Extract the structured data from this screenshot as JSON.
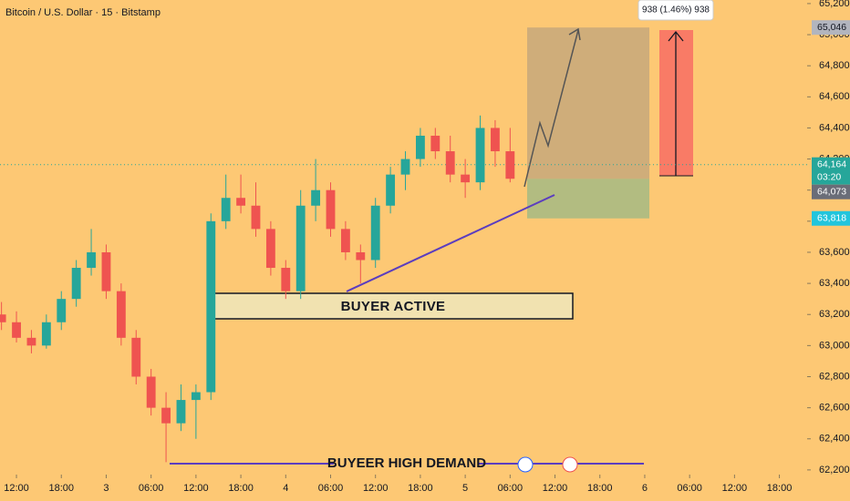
{
  "chart_data": {
    "type": "candlestick",
    "title": "Bitcoin / U.S. Dollar · 15 · Bitstamp",
    "x": [
      -2,
      0,
      2,
      4,
      6,
      8,
      10,
      12,
      14,
      16,
      18,
      20,
      22,
      24,
      26,
      28,
      30,
      32,
      34,
      36,
      38,
      40,
      42,
      44,
      46,
      48,
      50,
      52,
      54,
      56,
      58,
      60,
      62,
      64,
      66
    ],
    "open": [
      63200,
      63150,
      63050,
      63000,
      63150,
      63300,
      63500,
      63600,
      63350,
      63050,
      62800,
      62600,
      62500,
      62650,
      62700,
      63800,
      63950,
      63900,
      63750,
      63500,
      63350,
      63900,
      64000,
      63750,
      63600,
      63550,
      63900,
      64100,
      64200,
      64350,
      64250,
      64100,
      64050,
      64400,
      64250
    ],
    "high": [
      63280,
      63220,
      63100,
      63200,
      63350,
      63550,
      63750,
      63650,
      63400,
      63100,
      62850,
      62700,
      62750,
      62750,
      63850,
      64100,
      64100,
      64050,
      63800,
      63550,
      64000,
      64200,
      64050,
      63800,
      63650,
      63950,
      64150,
      64250,
      64400,
      64400,
      64350,
      64200,
      64480,
      64450,
      64400
    ],
    "low": [
      63100,
      63020,
      62950,
      62980,
      63100,
      63250,
      63450,
      63300,
      63000,
      62750,
      62550,
      62250,
      62450,
      62400,
      62650,
      63750,
      63850,
      63700,
      63450,
      63300,
      63300,
      63800,
      63700,
      63550,
      63400,
      63500,
      63850,
      64000,
      64150,
      64200,
      64050,
      63950,
      64000,
      64150,
      64050
    ],
    "close": [
      63150,
      63050,
      63000,
      63150,
      63300,
      63500,
      63600,
      63350,
      63050,
      62800,
      62600,
      62500,
      62650,
      62700,
      63800,
      63950,
      63900,
      63750,
      63500,
      63350,
      63900,
      64000,
      63750,
      63600,
      63550,
      63900,
      64100,
      64200,
      64350,
      64250,
      64100,
      64050,
      64400,
      64250,
      64073
    ],
    "up_color": "#26a69a",
    "down_color": "#ef5350",
    "xlim": [
      -2.2,
      105.1
    ],
    "xticks": [
      {
        "value": 0,
        "label": "12:00"
      },
      {
        "value": 6,
        "label": "18:00"
      },
      {
        "value": 12,
        "label": "3"
      },
      {
        "value": 18,
        "label": "06:00"
      },
      {
        "value": 24,
        "label": "12:00"
      },
      {
        "value": 30,
        "label": "18:00"
      },
      {
        "value": 36,
        "label": "4"
      },
      {
        "value": 42,
        "label": "06:00"
      },
      {
        "value": 48,
        "label": "12:00"
      },
      {
        "value": 54,
        "label": "18:00"
      },
      {
        "value": 60,
        "label": "5"
      },
      {
        "value": 66,
        "label": "06:00"
      },
      {
        "value": 72,
        "label": "12:00"
      },
      {
        "value": 78,
        "label": "18:00"
      },
      {
        "value": 84,
        "label": "6"
      },
      {
        "value": 90,
        "label": "06:00"
      },
      {
        "value": 96,
        "label": "12:00"
      },
      {
        "value": 102,
        "label": "18:00"
      }
    ],
    "ylim": [
      62170,
      65223
    ],
    "yticks": [
      {
        "value": 62200,
        "label": "62,200"
      },
      {
        "value": 62400,
        "label": "62,400"
      },
      {
        "value": 62600,
        "label": "62,600"
      },
      {
        "value": 62800,
        "label": "62,800"
      },
      {
        "value": 63000,
        "label": "63,000"
      },
      {
        "value": 63200,
        "label": "63,200"
      },
      {
        "value": 63400,
        "label": "63,400"
      },
      {
        "value": 63600,
        "label": "63,600"
      },
      {
        "value": 63800,
        "label": "63,800"
      },
      {
        "value": 64000,
        "label": "64,000"
      },
      {
        "value": 64200,
        "label": "64,200"
      },
      {
        "value": 64400,
        "label": "64,400"
      },
      {
        "value": 64600,
        "label": "64,600"
      },
      {
        "value": 64800,
        "label": "64,800"
      },
      {
        "value": 65000,
        "label": "65,000"
      },
      {
        "value": 65200,
        "label": "65,200"
      }
    ],
    "price_labels": [
      {
        "value": 65046,
        "label": "65,046",
        "color": "#b2b5be"
      },
      {
        "value": 64164,
        "label": "64,164",
        "sub": "03:20",
        "color": "#26a69a"
      },
      {
        "value": 64073,
        "label": "64,073",
        "color": "#6a6d78"
      },
      {
        "value": 63818,
        "label": "63,818",
        "color": "#22c5dc"
      }
    ],
    "position": {
      "entry": 64073,
      "target": 65046,
      "stop": 63818
    },
    "measure_label": "938 (1.46%) 938",
    "annotations": [
      "BUYER ACTIVE",
      "BUYEER HIGH DEMAND"
    ]
  }
}
